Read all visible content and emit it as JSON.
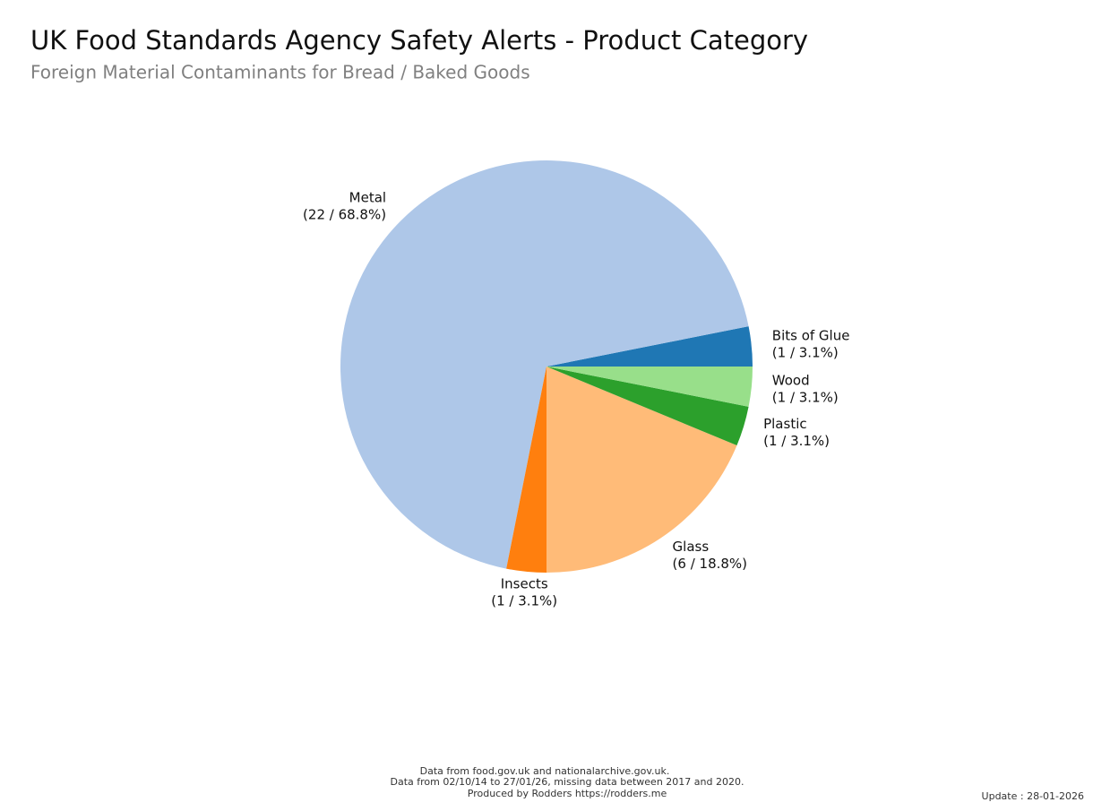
{
  "chart_data": {
    "type": "pie",
    "title": "UK Food Standards Agency Safety Alerts - Product Category",
    "subtitle": "Foreign Material Contaminants for Bread / Baked Goods",
    "categories": [
      "Bits of Glue",
      "Metal",
      "Insects",
      "Glass",
      "Plastic",
      "Wood"
    ],
    "values": [
      1,
      22,
      1,
      6,
      1,
      1
    ],
    "value_labels": [
      "(1 / 3.1%)",
      "(22 / 68.8%)",
      "(1 / 3.1%)",
      "(6 / 18.8%)",
      "(1 / 3.1%)",
      "(1 / 3.1%)"
    ],
    "colors": [
      "#1f77b4",
      "#aec7e8",
      "#ff7f0e",
      "#ffbb78",
      "#2ca02c",
      "#98df8a"
    ],
    "footer": [
      "Data from food.gov.uk and nationalarchive.gov.uk.",
      "Data from 02/10/14 to 27/01/26, missing data between 2017 and 2020.",
      "Produced by Rodders https://rodders.me"
    ],
    "update": "Update : 28-01-2026"
  }
}
